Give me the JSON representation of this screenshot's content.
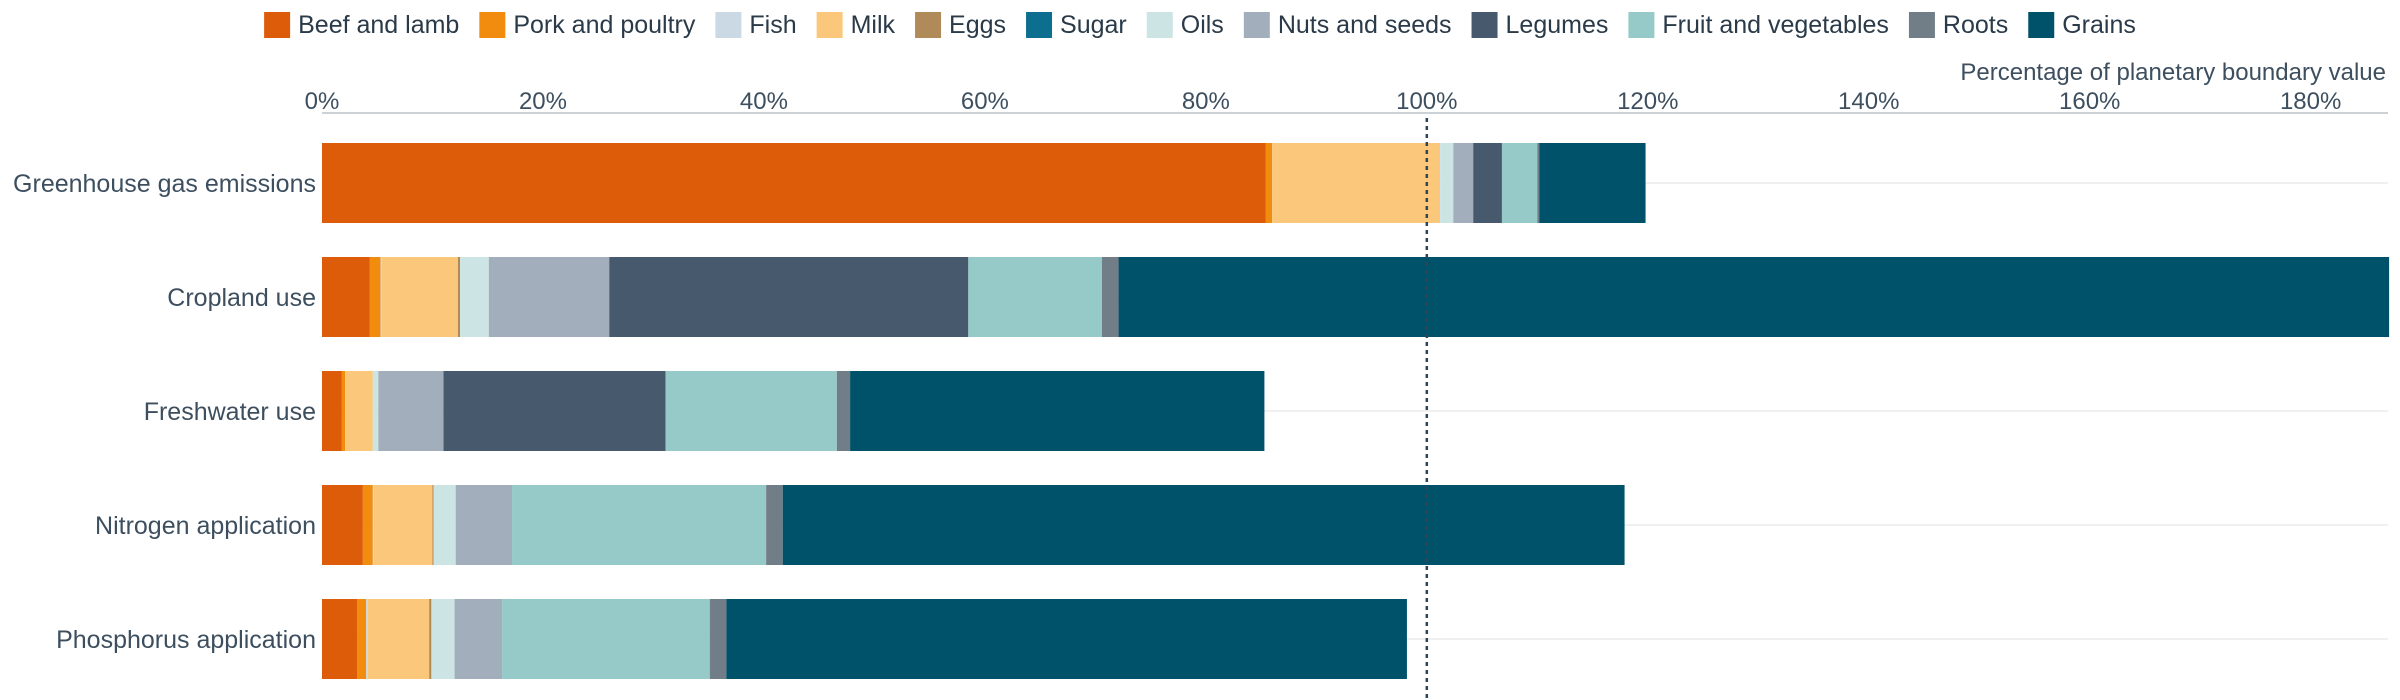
{
  "chart_data": {
    "type": "bar",
    "orientation": "horizontal",
    "stacked": true,
    "xlabel": "Percentage of planetary boundary value",
    "xlim": [
      0,
      187
    ],
    "x_ticks": [
      "0%",
      "20%",
      "40%",
      "60%",
      "80%",
      "100%",
      "120%",
      "140%",
      "160%",
      "180%"
    ],
    "x_tick_values": [
      0,
      20,
      40,
      60,
      80,
      100,
      120,
      140,
      160,
      180
    ],
    "reference_line": 100,
    "legend_position": "top",
    "grid": "horizontal lines only",
    "categories": [
      "Greenhouse gas emissions",
      "Cropland use",
      "Freshwater use",
      "Nitrogen application",
      "Phosphorus application"
    ],
    "series": [
      {
        "name": "Beef and lamb",
        "color": "#dd5c0a",
        "values": [
          85.4,
          4.3,
          1.8,
          3.7,
          3.2
        ]
      },
      {
        "name": "Pork and poultry",
        "color": "#f28c0f",
        "values": [
          0.6,
          1.0,
          0.3,
          0.9,
          0.8
        ]
      },
      {
        "name": "Fish",
        "color": "#cbd9e4",
        "values": [
          0.0,
          0.1,
          0.0,
          0.1,
          0.1
        ]
      },
      {
        "name": "Milk",
        "color": "#fbc87b",
        "values": [
          15.2,
          6.9,
          2.5,
          5.3,
          5.6
        ]
      },
      {
        "name": "Eggs",
        "color": "#b08a59",
        "values": [
          0.0,
          0.2,
          0.0,
          0.1,
          0.2
        ]
      },
      {
        "name": "Sugar",
        "color": "#0d6f8f",
        "values": [
          0.0,
          0.0,
          0.0,
          0.0,
          0.0
        ]
      },
      {
        "name": "Oils",
        "color": "#cce4e3",
        "values": [
          1.2,
          2.6,
          0.5,
          2.0,
          2.1
        ]
      },
      {
        "name": "Nuts and seeds",
        "color": "#a2aebb",
        "values": [
          1.8,
          10.9,
          5.9,
          5.1,
          4.3
        ]
      },
      {
        "name": "Legumes",
        "color": "#475a6d",
        "values": [
          2.6,
          32.5,
          20.1,
          0.0,
          0.0
        ]
      },
      {
        "name": "Fruit and vegetables",
        "color": "#96cac8",
        "values": [
          3.2,
          12.1,
          15.5,
          23.0,
          18.8
        ]
      },
      {
        "name": "Roots",
        "color": "#727e87",
        "values": [
          0.2,
          1.5,
          1.2,
          1.5,
          1.5
        ]
      },
      {
        "name": "Grains",
        "color": "#00526b",
        "values": [
          9.6,
          115.0,
          37.5,
          76.2,
          61.6
        ]
      }
    ]
  }
}
